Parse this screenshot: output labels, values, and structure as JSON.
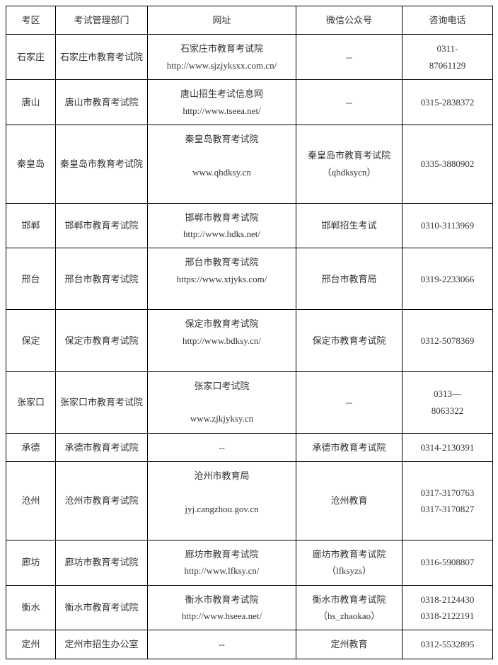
{
  "table": {
    "columns": [
      "考区",
      "考试管理部门",
      "网址",
      "微信公众号",
      "咨询电话"
    ],
    "col_widths": [
      "70px",
      "130px",
      "210px",
      "150px",
      "128px"
    ],
    "border_color": "#000000",
    "background_color": "#ffffff",
    "text_color": "#333333",
    "font_family": "SimSun",
    "font_size": 13,
    "rows": [
      {
        "area": "石家庄",
        "dept": "石家庄市教育考试院",
        "url_name": "石家庄市教育考试院",
        "url_addr": "http://www.sjzjyksxx.com.cn/",
        "wechat": "--",
        "phone1": "0311-",
        "phone2": "87061129"
      },
      {
        "area": "唐山",
        "dept": "唐山市教育考试院",
        "url_name": "唐山招生考试信息网",
        "url_addr": "http://www.tseea.net/",
        "wechat": "--",
        "phone1": "0315-2838372",
        "phone2": ""
      },
      {
        "area": "秦皇岛",
        "dept": "秦皇岛市教育考试院",
        "url_name": "秦皇岛教育考试院",
        "url_blank": " ",
        "url_addr": "www.qhdksy.cn",
        "url_blank2": " ",
        "wechat": "秦皇岛市教育考试院",
        "wechat2": "（qhdksycn）",
        "phone1": "0335-3880902",
        "phone2": ""
      },
      {
        "area": "邯郸",
        "dept": "邯郸市教育考试院",
        "url_name": "邯郸市教育考试院",
        "url_addr": "http://www.hdks.net/",
        "wechat": "邯郸招生考试",
        "phone1": "0310-3113969",
        "phone2": ""
      },
      {
        "area": "邢台",
        "dept": "邢台市教育考试院",
        "url_name": "邢台市教育考试院",
        "url_addr": "https://www.xtjyks.com/",
        "url_blank2": " ",
        "wechat": "邢台市教育局",
        "phone1": "0319-2233066",
        "phone2": ""
      },
      {
        "area": "保定",
        "dept": "保定市教育考试院",
        "url_name": "保定市教育考试院",
        "url_addr": "http://www.bdksy.cn/",
        "url_blank2": " ",
        "wechat": "保定市教育考试院",
        "phone1": "0312-5078369",
        "phone2": ""
      },
      {
        "area": "张家口",
        "dept": "张家口市教育考试院",
        "url_name": "张家口考试院",
        "url_blank": " ",
        "url_addr": "www.zjkjyksy.cn",
        "wechat": "--",
        "phone1": "0313—",
        "phone2": "8063322"
      },
      {
        "area": "承德",
        "dept": "承德市教育考试院",
        "url_name": "--",
        "url_addr": "",
        "wechat": "承德市教育考试院",
        "phone1": "0314-2130391",
        "phone2": ""
      },
      {
        "area": "沧州",
        "dept": "沧州市教育考试院",
        "url_name": "沧州市教育局",
        "url_blank": " ",
        "url_addr": "jyj.cangzhou.gov.cn",
        "url_blank2": " ",
        "wechat": "沧州教育",
        "phone1": "0317-3170763",
        "phone2": "0317-3170827"
      },
      {
        "area": "廊坊",
        "dept": "廊坊市教育考试院",
        "url_name": "廊坊市教育考试院",
        "url_addr": "http://www.lfksy.cn/",
        "wechat": "廊坊市教育考试院",
        "wechat2": "（lfksyzs）",
        "phone1": "0316-5908807",
        "phone2": ""
      },
      {
        "area": "衡水",
        "dept": "衡水市教育考试院",
        "url_name": "衡水市教育考试院",
        "url_addr": "http://www.hseea.net/",
        "wechat": "衡水市教育考试院",
        "wechat2": "（hs_zhaokao）",
        "phone1": "0318-2124430",
        "phone2": "0318-2122191"
      },
      {
        "area": "定州",
        "dept": "定州市招生办公室",
        "url_name": "--",
        "url_addr": "",
        "wechat": "定州教育",
        "phone1": "0312-5532895",
        "phone2": ""
      }
    ]
  }
}
